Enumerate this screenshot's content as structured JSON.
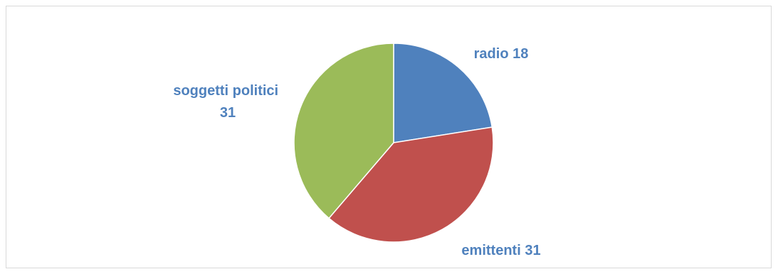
{
  "chart_data": {
    "type": "pie",
    "title": "",
    "legend": "none",
    "slices": [
      {
        "label": "radio",
        "value": 18,
        "color": "#4f81bd",
        "text": "radio 18"
      },
      {
        "label": "emittenti",
        "value": 31,
        "color": "#c0504d",
        "text": "emittenti 31"
      },
      {
        "label": "soggetti politici",
        "value": 31,
        "color": "#9bbb59",
        "text_lines": [
          "soggetti politici",
          "31"
        ]
      }
    ]
  }
}
